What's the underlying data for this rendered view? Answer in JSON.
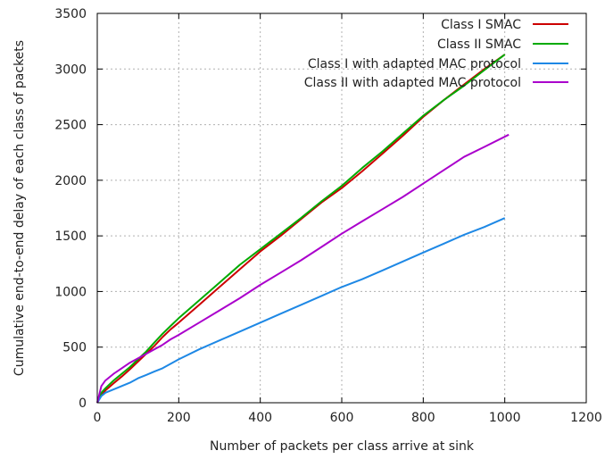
{
  "chart_data": {
    "type": "line",
    "title": "",
    "xlabel": "Number of packets per class arrive at sink",
    "ylabel": "Cumulative end-to-end delay of each class of packets",
    "xlim": [
      0,
      1200
    ],
    "ylim": [
      0,
      3500
    ],
    "xticks": [
      0,
      200,
      400,
      600,
      800,
      1000,
      1200
    ],
    "yticks": [
      0,
      500,
      1000,
      1500,
      2000,
      2500,
      3000,
      3500
    ],
    "grid": true,
    "legend_position": "top-right",
    "series": [
      {
        "name": "Class I SMAC",
        "color": "#cc0000",
        "x": [
          0,
          10,
          20,
          40,
          60,
          80,
          100,
          120,
          140,
          160,
          180,
          200,
          250,
          300,
          350,
          400,
          450,
          500,
          550,
          600,
          650,
          700,
          750,
          800,
          850,
          900,
          950,
          1000
        ],
        "y": [
          0,
          70,
          110,
          175,
          235,
          300,
          370,
          440,
          510,
          590,
          660,
          720,
          880,
          1040,
          1200,
          1360,
          1500,
          1650,
          1800,
          1930,
          2080,
          2240,
          2400,
          2570,
          2720,
          2860,
          3000,
          3130
        ]
      },
      {
        "name": "Class II SMAC",
        "color": "#00aa00",
        "x": [
          0,
          10,
          20,
          40,
          60,
          80,
          100,
          120,
          140,
          160,
          180,
          200,
          250,
          300,
          350,
          400,
          450,
          500,
          550,
          600,
          650,
          700,
          750,
          800,
          850,
          900,
          950,
          1000
        ],
        "y": [
          0,
          90,
          130,
          200,
          260,
          320,
          390,
          460,
          540,
          620,
          690,
          760,
          920,
          1080,
          1240,
          1380,
          1520,
          1660,
          1810,
          1950,
          2110,
          2260,
          2420,
          2580,
          2720,
          2850,
          2990,
          3130
        ]
      },
      {
        "name": "Class I with adapted MAC protocol",
        "color": "#1e88e5",
        "x": [
          0,
          10,
          20,
          40,
          60,
          80,
          100,
          120,
          140,
          160,
          180,
          200,
          250,
          300,
          350,
          400,
          450,
          500,
          550,
          600,
          650,
          700,
          750,
          800,
          850,
          900,
          950,
          1000
        ],
        "y": [
          0,
          60,
          90,
          120,
          150,
          180,
          220,
          250,
          280,
          310,
          350,
          390,
          480,
          560,
          640,
          720,
          800,
          880,
          960,
          1040,
          1110,
          1190,
          1270,
          1350,
          1430,
          1510,
          1580,
          1660
        ]
      },
      {
        "name": "Class II with adapted MAC protocol",
        "color": "#aa00cc",
        "x": [
          0,
          10,
          20,
          40,
          60,
          80,
          100,
          120,
          140,
          160,
          180,
          200,
          250,
          300,
          350,
          400,
          450,
          500,
          550,
          600,
          650,
          700,
          750,
          800,
          850,
          900,
          950,
          1010
        ],
        "y": [
          0,
          150,
          200,
          260,
          310,
          360,
          400,
          440,
          480,
          520,
          570,
          610,
          720,
          830,
          940,
          1060,
          1170,
          1280,
          1400,
          1520,
          1630,
          1740,
          1850,
          1970,
          2090,
          2210,
          2300,
          2410
        ]
      }
    ]
  }
}
